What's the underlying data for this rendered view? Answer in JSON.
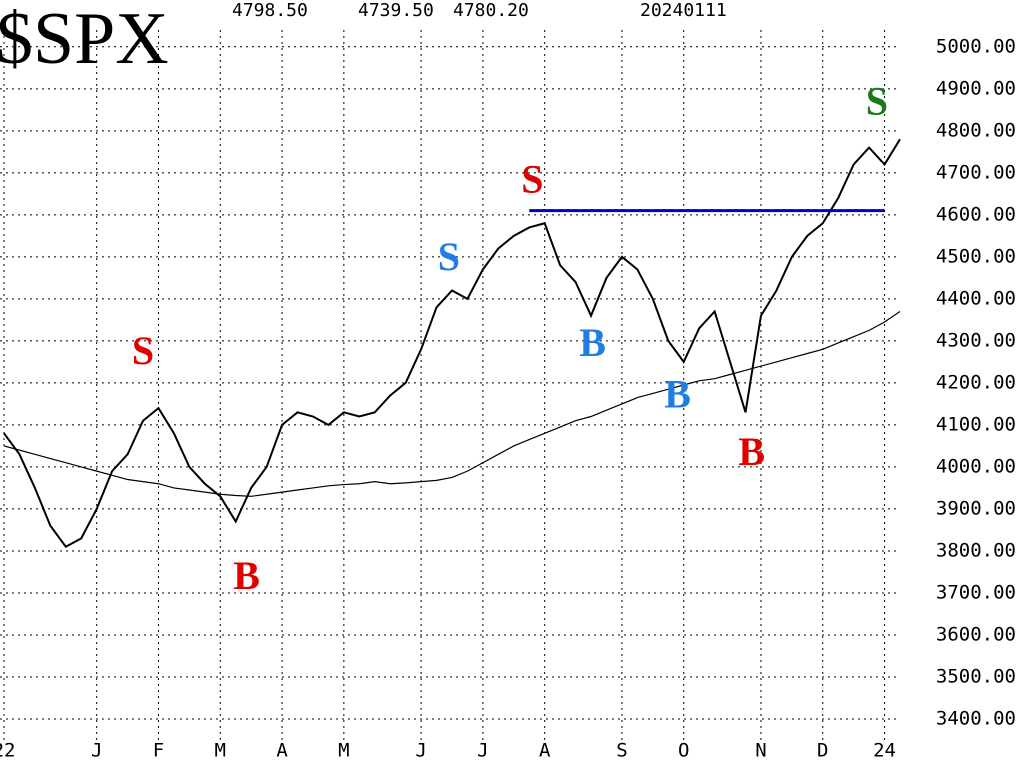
{
  "chart_data": {
    "type": "line",
    "title": "$SPX",
    "header_values": [
      "4798.50",
      "4739.50",
      "4780.20",
      "20240111"
    ],
    "categories": [
      "22",
      null,
      null,
      null,
      null,
      null,
      "J",
      null,
      null,
      null,
      "F",
      null,
      null,
      null,
      "M",
      null,
      null,
      null,
      "A",
      null,
      null,
      null,
      "M",
      null,
      null,
      null,
      null,
      "J",
      null,
      null,
      null,
      "J",
      null,
      null,
      null,
      "A",
      null,
      null,
      null,
      null,
      "S",
      null,
      null,
      null,
      "O",
      null,
      null,
      null,
      null,
      "N",
      null,
      null,
      null,
      "D",
      null,
      null,
      null,
      "24",
      null
    ],
    "series": [
      {
        "color": "#000000",
        "values": [
          4080,
          4030,
          3950,
          3860,
          3810,
          3830,
          3900,
          3990,
          4030,
          4110,
          4140,
          4080,
          4000,
          3960,
          3930,
          3870,
          3950,
          4000,
          4100,
          4130,
          4120,
          4100,
          4130,
          4120,
          4130,
          4170,
          4200,
          4280,
          4380,
          4420,
          4400,
          4470,
          4520,
          4550,
          4570,
          4580,
          4480,
          4440,
          4360,
          4450,
          4500,
          4470,
          4400,
          4300,
          4250,
          4330,
          4370,
          4250,
          4130,
          4360,
          4420,
          4500,
          4550,
          4580,
          4640,
          4720,
          4760,
          4720,
          4780
        ]
      },
      {
        "color": "#000000",
        "values": [
          4050,
          4040,
          4030,
          4020,
          4010,
          4000,
          3990,
          3980,
          3970,
          3965,
          3960,
          3950,
          3945,
          3940,
          3935,
          3932,
          3930,
          3935,
          3940,
          3945,
          3950,
          3955,
          3958,
          3960,
          3965,
          3960,
          3962,
          3965,
          3968,
          3975,
          3990,
          4010,
          4030,
          4050,
          4065,
          4080,
          4095,
          4110,
          4120,
          4135,
          4150,
          4165,
          4175,
          4185,
          4195,
          4205,
          4210,
          4220,
          4230,
          4240,
          4250,
          4260,
          4270,
          4280,
          4295,
          4310,
          4325,
          4345,
          4370
        ]
      }
    ],
    "ylim": [
      3350,
      5040
    ],
    "yticks": [
      {
        "value": 3400,
        "label": "3400.00"
      },
      {
        "value": 3500,
        "label": "3500.00"
      },
      {
        "value": 3600,
        "label": "3600.00"
      },
      {
        "value": 3700,
        "label": "3700.00"
      },
      {
        "value": 3800,
        "label": "3800.00"
      },
      {
        "value": 3900,
        "label": "3900.00"
      },
      {
        "value": 4000,
        "label": "4000.00"
      },
      {
        "value": 4100,
        "label": "4100.00"
      },
      {
        "value": 4200,
        "label": "4200.00"
      },
      {
        "value": 4300,
        "label": "4300.00"
      },
      {
        "value": 4400,
        "label": "4400.00"
      },
      {
        "value": 4500,
        "label": "4500.00"
      },
      {
        "value": 4600,
        "label": "4600.00"
      },
      {
        "value": 4700,
        "label": "4700.00"
      },
      {
        "value": 4800,
        "label": "4800.00"
      },
      {
        "value": 4900,
        "label": "4900.00"
      },
      {
        "value": 5000,
        "label": "5000.00"
      }
    ],
    "grid": true,
    "hline": {
      "value": 4610,
      "from": 34,
      "to": 57,
      "color": "#0000c0"
    },
    "annotations": [
      {
        "text": "S",
        "color": "#e00000",
        "at": 9,
        "y": 4267
      },
      {
        "text": "B",
        "color": "#e00000",
        "at": 15.7,
        "y": 3731
      },
      {
        "text": "S",
        "color": "#1e7fe0",
        "at": 28.8,
        "y": 4490
      },
      {
        "text": "S",
        "color": "#e00000",
        "at": 34.2,
        "y": 4675
      },
      {
        "text": "B",
        "color": "#1e7fe0",
        "at": 38.1,
        "y": 4286
      },
      {
        "text": "B",
        "color": "#1e7fe0",
        "at": 43.6,
        "y": 4163
      },
      {
        "text": "B",
        "color": "#e00000",
        "at": 48.4,
        "y": 4026
      },
      {
        "text": "S",
        "color": "#1a7a1a",
        "at": 56.5,
        "y": 4861
      }
    ]
  }
}
